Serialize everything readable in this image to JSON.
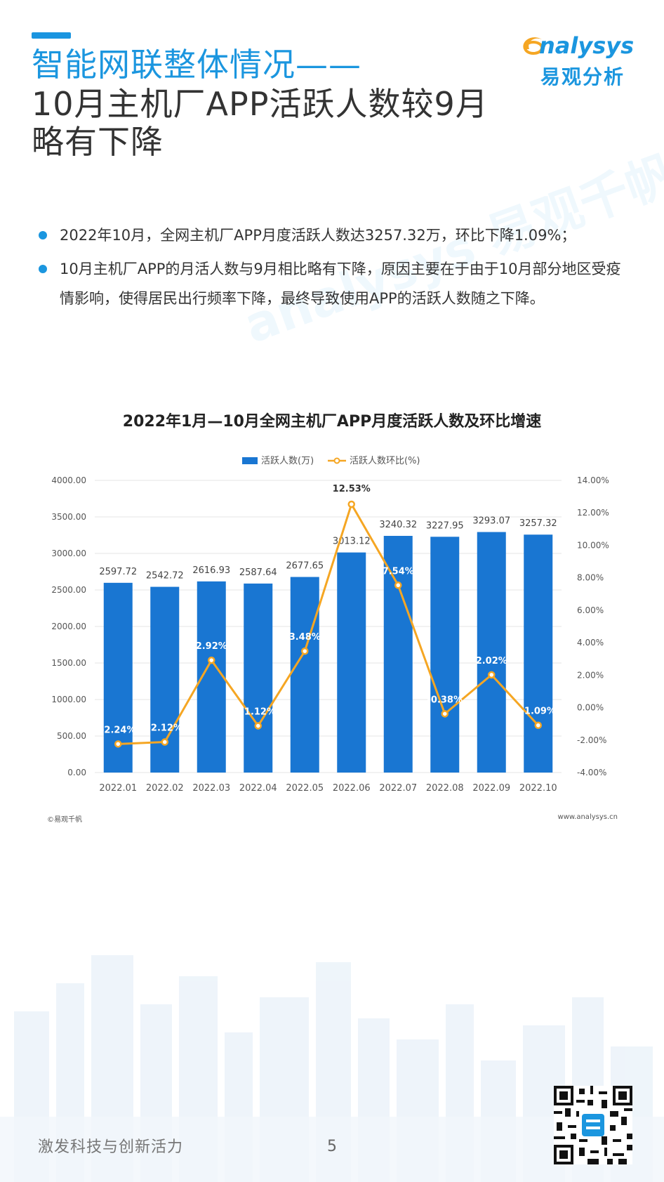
{
  "header": {
    "title_line1": "智能网联整体情况——",
    "title_line2": "10月主机厂APP活跃人数较9月",
    "title_line3": "略有下降",
    "logo_top": "nalysys",
    "logo_bottom": "易观分析",
    "brand_color": "#1b96df"
  },
  "bullets": [
    {
      "text": "2022年10月，全网主机厂APP月度活跃人数达3257.32万，环比下降1.09%；"
    },
    {
      "text": "10月主机厂APP的月活人数与9月相比略有下降，原因主要在于由于10月部分地区受疫情影响，使得居民出行频率下降，最终导致使用APP的活跃人数随之下降。"
    }
  ],
  "chart_data": {
    "type": "bar",
    "title": "2022年1月—10月全网主机厂APP月度活跃人数及环比增速",
    "legend": [
      "活跃人数(万)",
      "活跃人数环比(%)"
    ],
    "legend_position": "top-center",
    "categories": [
      "2022.01",
      "2022.02",
      "2022.03",
      "2022.04",
      "2022.05",
      "2022.06",
      "2022.07",
      "2022.08",
      "2022.09",
      "2022.10"
    ],
    "series": [
      {
        "name": "活跃人数(万)",
        "type": "bar",
        "axis": "left",
        "color": "#1976d2",
        "values": [
          2597.72,
          2542.72,
          2616.93,
          2587.64,
          2677.65,
          3013.12,
          3240.32,
          3227.95,
          3293.07,
          3257.32
        ],
        "labels": [
          "2597.72",
          "2542.72",
          "2616.93",
          "2587.64",
          "2677.65",
          "3013.12",
          "3240.32",
          "3227.95",
          "3293.07",
          "3257.32"
        ]
      },
      {
        "name": "活跃人数环比(%)",
        "type": "line",
        "axis": "right",
        "color": "#f5a623",
        "values": [
          -2.24,
          -2.12,
          2.92,
          -1.12,
          3.48,
          12.53,
          7.54,
          -0.38,
          2.02,
          -1.09
        ],
        "labels": [
          "-2.24%",
          "-2.12%",
          "2.92%",
          "-1.12%",
          "3.48%",
          "12.53%",
          "7.54%",
          "-0.38%",
          "2.02%",
          "-1.09%"
        ]
      }
    ],
    "y_left": {
      "min": 0,
      "max": 4000,
      "ticks": [
        "0.00",
        "500.00",
        "1000.00",
        "1500.00",
        "2000.00",
        "2500.00",
        "3000.00",
        "3500.00",
        "4000.00"
      ]
    },
    "y_right": {
      "min": -4,
      "max": 14,
      "ticks": [
        "-4.00%",
        "-2.00%",
        "0.00%",
        "2.00%",
        "4.00%",
        "6.00%",
        "8.00%",
        "10.00%",
        "12.00%",
        "14.00%"
      ]
    },
    "grid": true
  },
  "source": {
    "left": "©易观千帆",
    "right": "www.analysys.cn"
  },
  "footer": {
    "slogan": "激发科技与创新活力",
    "page": "5"
  }
}
